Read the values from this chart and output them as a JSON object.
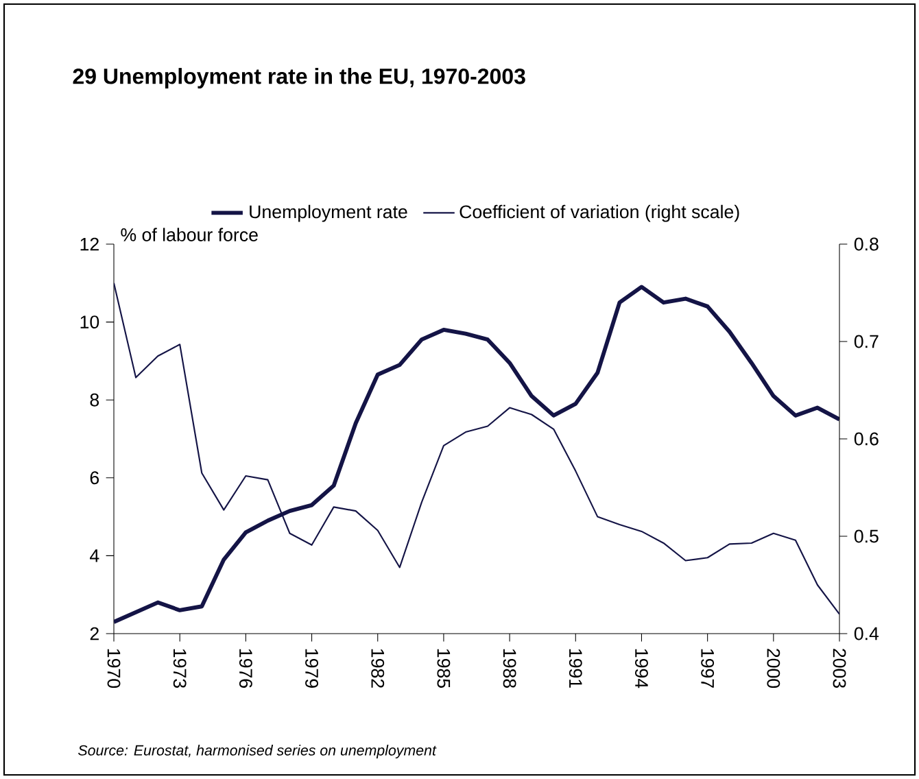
{
  "chart_data": {
    "type": "line",
    "title": "29   Unemployment rate in the EU, 1970-2003",
    "ylabel": "% of labour force",
    "annotations": [
      "Source: Eurostat, harmonised series on unemployment"
    ],
    "x": [
      1970,
      1971,
      1972,
      1973,
      1974,
      1975,
      1976,
      1977,
      1978,
      1979,
      1980,
      1981,
      1982,
      1983,
      1984,
      1985,
      1986,
      1987,
      1988,
      1989,
      1990,
      1991,
      1992,
      1993,
      1994,
      1995,
      1996,
      1997,
      1998,
      1999,
      2000,
      2001,
      2002,
      2003
    ],
    "xlim": [
      1970,
      2003
    ],
    "xticks": [
      1970,
      1973,
      1976,
      1979,
      1982,
      1985,
      1988,
      1991,
      1994,
      1997,
      2000,
      2003
    ],
    "ylim": [
      2,
      12
    ],
    "yticks": [
      2,
      4,
      6,
      8,
      10,
      12
    ],
    "y2lim": [
      0.4,
      0.8
    ],
    "y2ticks": [
      0.4,
      0.5,
      0.6,
      0.7,
      0.8
    ],
    "series": [
      {
        "name": "Unemployment rate",
        "color": "#141446",
        "values": [
          2.3,
          2.55,
          2.8,
          2.6,
          2.7,
          3.9,
          4.6,
          4.9,
          5.15,
          5.3,
          5.8,
          7.4,
          8.65,
          8.9,
          9.55,
          9.8,
          9.7,
          9.55,
          8.95,
          8.1,
          7.6,
          7.9,
          8.7,
          10.5,
          10.9,
          10.5,
          10.6,
          10.4,
          9.75,
          8.95,
          8.1,
          7.6,
          7.8,
          7.5
        ]
      },
      {
        "name": "Coefficient of variation (right scale)",
        "color": "#141446",
        "axis": "y2",
        "values": [
          0.76,
          0.663,
          0.685,
          0.697,
          0.565,
          0.527,
          0.562,
          0.558,
          0.503,
          0.491,
          0.53,
          0.526,
          0.506,
          0.468,
          0.535,
          0.593,
          0.607,
          0.613,
          0.632,
          0.625,
          0.61,
          0.567,
          0.52,
          0.512,
          0.505,
          0.493,
          0.475,
          0.478,
          0.492,
          0.493,
          0.503,
          0.496,
          0.45,
          0.42
        ]
      }
    ],
    "legend": "top",
    "grid": false,
    "marker": "none",
    "line_style": "solid"
  }
}
